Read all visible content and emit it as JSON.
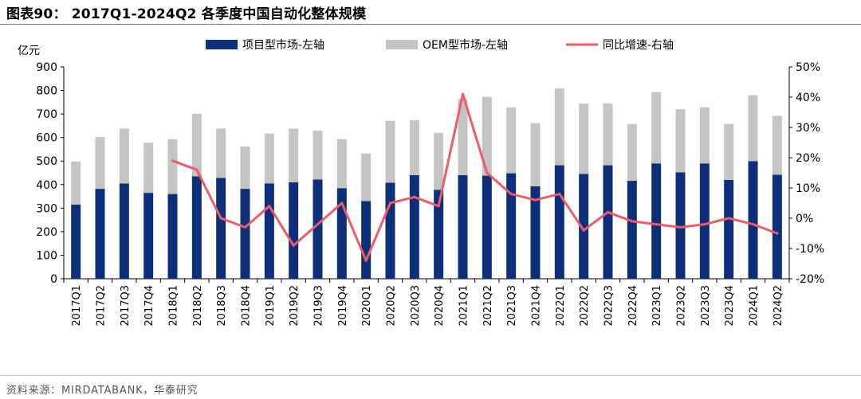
{
  "figure": {
    "title": "图表90： 2017Q1-2024Q2 各季度中国自动化整体规模",
    "source": "资料来源：MIRDATABANK，华泰研究"
  },
  "chart_data": {
    "type": "bar",
    "stacked": true,
    "y_unit_label": "亿元",
    "ylim": [
      0,
      900
    ],
    "y_ticks": [
      0,
      100,
      200,
      300,
      400,
      500,
      600,
      700,
      800,
      900
    ],
    "y2lim": [
      -20,
      50
    ],
    "y2_ticks": [
      -20,
      -10,
      0,
      10,
      20,
      30,
      40,
      50
    ],
    "y2_tick_labels": [
      "-20%",
      "-10%",
      "0%",
      "10%",
      "20%",
      "30%",
      "40%",
      "50%"
    ],
    "categories": [
      "2017Q1",
      "2017Q2",
      "2017Q3",
      "2017Q4",
      "2018Q1",
      "2018Q2",
      "2018Q3",
      "2018Q4",
      "2019Q1",
      "2019Q2",
      "2019Q3",
      "2019Q4",
      "2020Q1",
      "2020Q2",
      "2020Q3",
      "2020Q4",
      "2021Q1",
      "2021Q2",
      "2021Q3",
      "2021Q4",
      "2022Q1",
      "2022Q2",
      "2022Q3",
      "2022Q4",
      "2023Q1",
      "2023Q2",
      "2023Q3",
      "2023Q4",
      "2024Q1",
      "2024Q2"
    ],
    "series": [
      {
        "name": "项目型市场-左轴",
        "kind": "bar",
        "axis": "left",
        "color": "#0d2f7a",
        "values": [
          315,
          382,
          405,
          365,
          360,
          435,
          428,
          382,
          405,
          410,
          422,
          385,
          330,
          408,
          440,
          378,
          440,
          438,
          448,
          393,
          482,
          445,
          482,
          416,
          490,
          452,
          490,
          420,
          500,
          442
        ]
      },
      {
        "name": "OEM型市场-左轴",
        "kind": "bar",
        "axis": "left",
        "color": "#c4c4c4",
        "values": [
          183,
          220,
          233,
          213,
          233,
          266,
          210,
          180,
          212,
          228,
          207,
          208,
          202,
          263,
          233,
          241,
          323,
          335,
          280,
          268,
          326,
          299,
          263,
          241,
          303,
          268,
          238,
          238,
          280,
          250
        ]
      },
      {
        "name": "同比增速-右轴",
        "kind": "line",
        "axis": "right",
        "color": "#ef5b67",
        "values": [
          null,
          null,
          null,
          null,
          19,
          16,
          0,
          -3,
          4,
          -9,
          -2,
          5,
          -14,
          5,
          7,
          4,
          41,
          15,
          8,
          6,
          8,
          -4,
          2,
          -1,
          -2,
          -3,
          -2,
          0,
          -2,
          -5
        ]
      }
    ]
  }
}
